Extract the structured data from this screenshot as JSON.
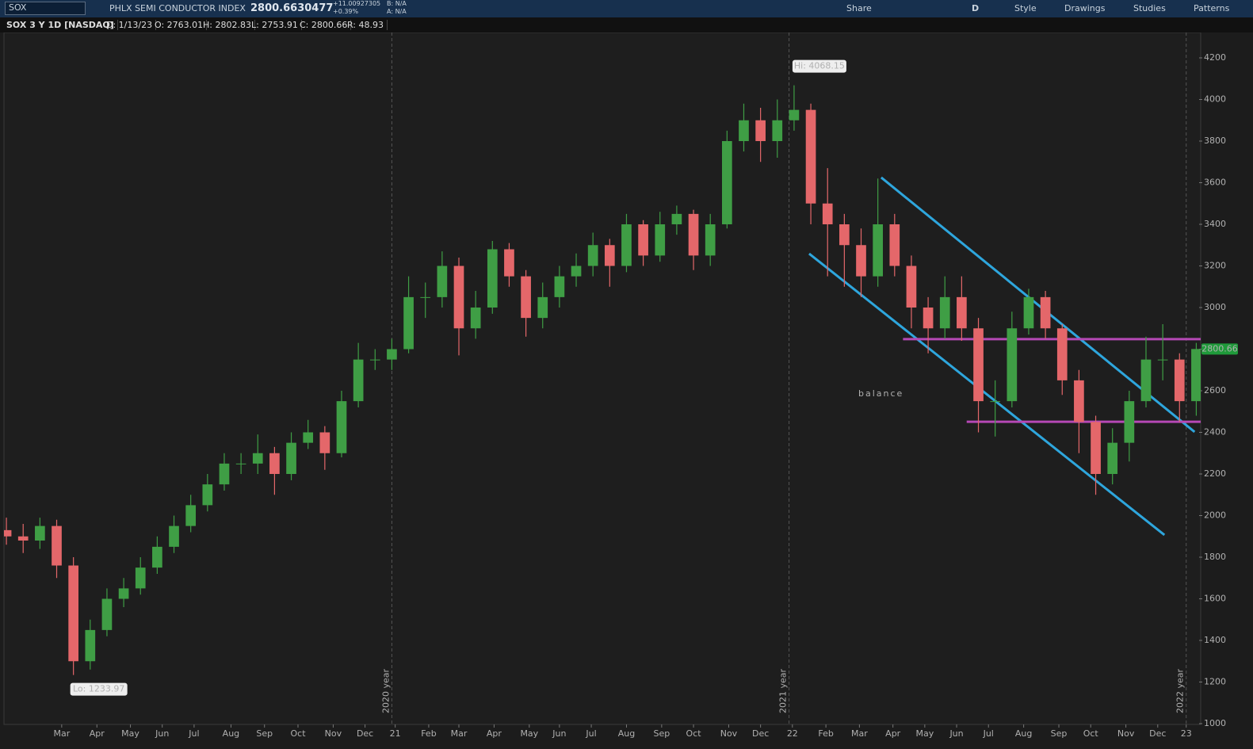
{
  "header": {
    "symbol": "SOX",
    "description": "PHLX SEMI CONDUCTOR INDEX",
    "last": "2800.6630477",
    "change": "+11.00927305",
    "change_pct": "+0.39%",
    "bid": "B: N/A",
    "ask": "A: N/A",
    "toolbar": [
      "Share",
      "D",
      "Style",
      "Drawings",
      "Studies",
      "Patterns"
    ],
    "info": [
      "SOX 3 Y 1D [NASDAQ]",
      "D: 1/13/23",
      "O: 2763.01",
      "H: 2802.83",
      "L: 2753.91",
      "C: 2800.66",
      "R: 48.93"
    ]
  },
  "chart_data": {
    "type": "candlestick",
    "up_color": "#3f9e45",
    "down_color": "#e4676a",
    "xlim": [
      -0.5,
      71.5
    ],
    "ylim": [
      1000,
      4200
    ],
    "yticks": [
      1000,
      1200,
      1400,
      1600,
      1800,
      2000,
      2200,
      2400,
      2600,
      2800,
      3000,
      3200,
      3400,
      3600,
      3800,
      4000,
      4200
    ],
    "xticks": [
      {
        "value": 3.3,
        "label": "Mar"
      },
      {
        "value": 5.4,
        "label": "Apr"
      },
      {
        "value": 7.4,
        "label": "May"
      },
      {
        "value": 9.3,
        "label": "Jun"
      },
      {
        "value": 11.2,
        "label": "Jul"
      },
      {
        "value": 13.4,
        "label": "Aug"
      },
      {
        "value": 15.4,
        "label": "Sep"
      },
      {
        "value": 17.4,
        "label": "Oct"
      },
      {
        "value": 19.5,
        "label": "Nov"
      },
      {
        "value": 21.4,
        "label": "Dec"
      },
      {
        "value": 23.2,
        "label": "21"
      },
      {
        "value": 25.2,
        "label": "Feb"
      },
      {
        "value": 27.0,
        "label": "Mar"
      },
      {
        "value": 29.1,
        "label": "Apr"
      },
      {
        "value": 31.2,
        "label": "May"
      },
      {
        "value": 33.0,
        "label": "Jun"
      },
      {
        "value": 34.9,
        "label": "Jul"
      },
      {
        "value": 37.0,
        "label": "Aug"
      },
      {
        "value": 39.1,
        "label": "Sep"
      },
      {
        "value": 41.0,
        "label": "Oct"
      },
      {
        "value": 43.1,
        "label": "Nov"
      },
      {
        "value": 45.0,
        "label": "Dec"
      },
      {
        "value": 46.9,
        "label": "22"
      },
      {
        "value": 48.9,
        "label": "Feb"
      },
      {
        "value": 50.9,
        "label": "Mar"
      },
      {
        "value": 52.9,
        "label": "Apr"
      },
      {
        "value": 54.8,
        "label": "May"
      },
      {
        "value": 56.7,
        "label": "Jun"
      },
      {
        "value": 58.6,
        "label": "Jul"
      },
      {
        "value": 60.7,
        "label": "Aug"
      },
      {
        "value": 62.8,
        "label": "Sep"
      },
      {
        "value": 64.7,
        "label": "Oct"
      },
      {
        "value": 66.8,
        "label": "Nov"
      },
      {
        "value": 68.7,
        "label": "Dec"
      },
      {
        "value": 70.4,
        "label": "23"
      }
    ],
    "year_markers": [
      {
        "value": 23.0,
        "label": "2020 year"
      },
      {
        "value": 46.7,
        "label": "2021 year"
      },
      {
        "value": 70.4,
        "label": "2022 year"
      }
    ],
    "open": [
      1930,
      1900,
      1880,
      1950,
      1760,
      1300,
      1450,
      1600,
      1650,
      1750,
      1850,
      1950,
      2050,
      2150,
      2250,
      2250,
      2300,
      2200,
      2350,
      2400,
      2300,
      2550,
      2750,
      2750,
      2800,
      3050,
      3050,
      3200,
      2900,
      3000,
      3280,
      3150,
      2950,
      3050,
      3150,
      3200,
      3300,
      3200,
      3400,
      3250,
      3400,
      3450,
      3250,
      3400,
      3800,
      3900,
      3800,
      3900,
      3950,
      3500,
      3400,
      3300,
      3150,
      3400,
      3200,
      3000,
      2900,
      3050,
      2900,
      2550,
      2550,
      2900,
      3050,
      2900,
      2650,
      2450,
      2200,
      2350,
      2550,
      2750,
      2750,
      2550
    ],
    "high": [
      1990,
      1960,
      1990,
      1980,
      1800,
      1500,
      1650,
      1700,
      1800,
      1900,
      2000,
      2100,
      2200,
      2300,
      2300,
      2390,
      2330,
      2400,
      2460,
      2430,
      2600,
      2830,
      2800,
      2850,
      3150,
      3120,
      3270,
      3240,
      3080,
      3320,
      3310,
      3180,
      3120,
      3200,
      3260,
      3360,
      3330,
      3450,
      3420,
      3460,
      3490,
      3470,
      3450,
      3850,
      3980,
      3960,
      4000,
      4068.15,
      3980,
      3670,
      3450,
      3380,
      3620,
      3450,
      3250,
      3050,
      3150,
      3150,
      2950,
      2650,
      2980,
      3090,
      3080,
      2920,
      2700,
      2480,
      2420,
      2600,
      2860,
      2920,
      2780,
      2830
    ],
    "low": [
      1860,
      1820,
      1840,
      1700,
      1233.97,
      1260,
      1420,
      1560,
      1620,
      1720,
      1820,
      1920,
      2020,
      2120,
      2200,
      2200,
      2100,
      2170,
      2320,
      2220,
      2280,
      2520,
      2700,
      2700,
      2780,
      2950,
      3000,
      2770,
      2850,
      2970,
      3100,
      2860,
      2900,
      3000,
      3100,
      3150,
      3100,
      3170,
      3200,
      3220,
      3350,
      3180,
      3200,
      3380,
      3750,
      3700,
      3720,
      3850,
      3400,
      3150,
      3100,
      3050,
      3100,
      3150,
      2900,
      2780,
      2850,
      2840,
      2400,
      2380,
      2520,
      2870,
      2850,
      2580,
      2300,
      2100,
      2150,
      2260,
      2520,
      2650,
      2450,
      2480
    ],
    "close": [
      1900,
      1880,
      1950,
      1760,
      1300,
      1450,
      1600,
      1650,
      1750,
      1850,
      1950,
      2050,
      2150,
      2250,
      2250,
      2300,
      2200,
      2350,
      2400,
      2300,
      2550,
      2750,
      2750,
      2800,
      3050,
      3050,
      3200,
      2900,
      3000,
      3280,
      3150,
      2950,
      3050,
      3150,
      3200,
      3300,
      3200,
      3400,
      3250,
      3400,
      3450,
      3250,
      3400,
      3800,
      3900,
      3800,
      3900,
      3950,
      3500,
      3400,
      3300,
      3150,
      3400,
      3200,
      3000,
      2900,
      3050,
      2900,
      2550,
      2550,
      2900,
      3050,
      2900,
      2650,
      2450,
      2200,
      2350,
      2550,
      2750,
      2750,
      2550,
      2800.66
    ],
    "last_color": "#1f9a3a",
    "annotations": {
      "hi": "Hi: 4068.15",
      "lo": "Lo: 1233.97",
      "note": "balance",
      "note_color": "#b548b5"
    },
    "trendlines": [
      {
        "color": "#2ea6dd",
        "x": [
          52.2,
          70.9
        ],
        "y": [
          3625,
          2402
        ]
      },
      {
        "color": "#2ea6dd",
        "x": [
          47.9,
          69.1
        ],
        "y": [
          3259,
          1907
        ]
      },
      {
        "color": "#b548b5",
        "x": [
          53.5,
          71.3
        ],
        "y": [
          2848,
          2848
        ]
      },
      {
        "color": "#b548b5",
        "x": [
          57.3,
          71.3
        ],
        "y": [
          2451,
          2451
        ]
      }
    ]
  }
}
